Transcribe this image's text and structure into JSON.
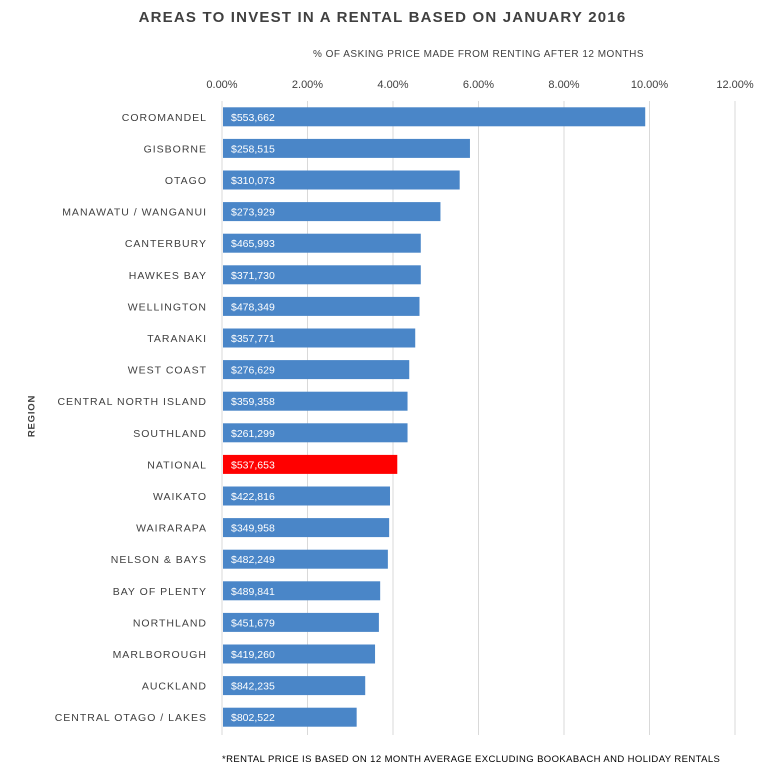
{
  "chart_data": {
    "type": "bar",
    "orientation": "horizontal",
    "title": "AREAS TO INVEST IN A RENTAL BASED ON JANUARY 2016",
    "xlabel": "% OF ASKING PRICE MADE FROM RENTING AFTER 12 MONTHS",
    "ylabel": "REGION",
    "xlim": [
      0,
      12
    ],
    "x_ticks": [
      "0.00%",
      "2.00%",
      "4.00%",
      "6.00%",
      "8.00%",
      "10.00%",
      "12.00%"
    ],
    "x_axis_position": "top",
    "grid": "vertical",
    "categories": [
      "COROMANDEL",
      "GISBORNE",
      "OTAGO",
      "MANAWATU / WANGANUI",
      "CANTERBURY",
      "HAWKES BAY",
      "WELLINGTON",
      "TARANAKI",
      "WEST COAST",
      "CENTRAL NORTH ISLAND",
      "SOUTHLAND",
      "NATIONAL",
      "WAIKATO",
      "WAIRARAPA",
      "NELSON & BAYS",
      "BAY OF PLENTY",
      "NORTHLAND",
      "MARLBOROUGH",
      "AUCKLAND",
      "CENTRAL OTAGO / LAKES"
    ],
    "values": [
      9.9,
      5.8,
      5.56,
      5.11,
      4.65,
      4.65,
      4.62,
      4.52,
      4.38,
      4.34,
      4.34,
      4.1,
      3.93,
      3.91,
      3.88,
      3.7,
      3.67,
      3.58,
      3.35,
      3.15
    ],
    "data_labels": [
      "$553,662",
      "$258,515",
      "$310,073",
      "$273,929",
      "$465,993",
      "$371,730",
      "$478,349",
      "$357,771",
      "$276,629",
      "$359,358",
      "$261,299",
      "$537,653",
      "$422,816",
      "$349,958",
      "$482,249",
      "$489,841",
      "$451,679",
      "$419,260",
      "$842,235",
      "$802,522"
    ],
    "highlight_category": "NATIONAL",
    "colors": {
      "bar": "#4a86c8",
      "highlight": "#ff0000",
      "grid": "#d9d9d9",
      "text": "#404040"
    },
    "footnote": "*RENTAL PRICE IS BASED ON 12 MONTH AVERAGE EXCLUDING BOOKABACH AND HOLIDAY RENTALS"
  }
}
